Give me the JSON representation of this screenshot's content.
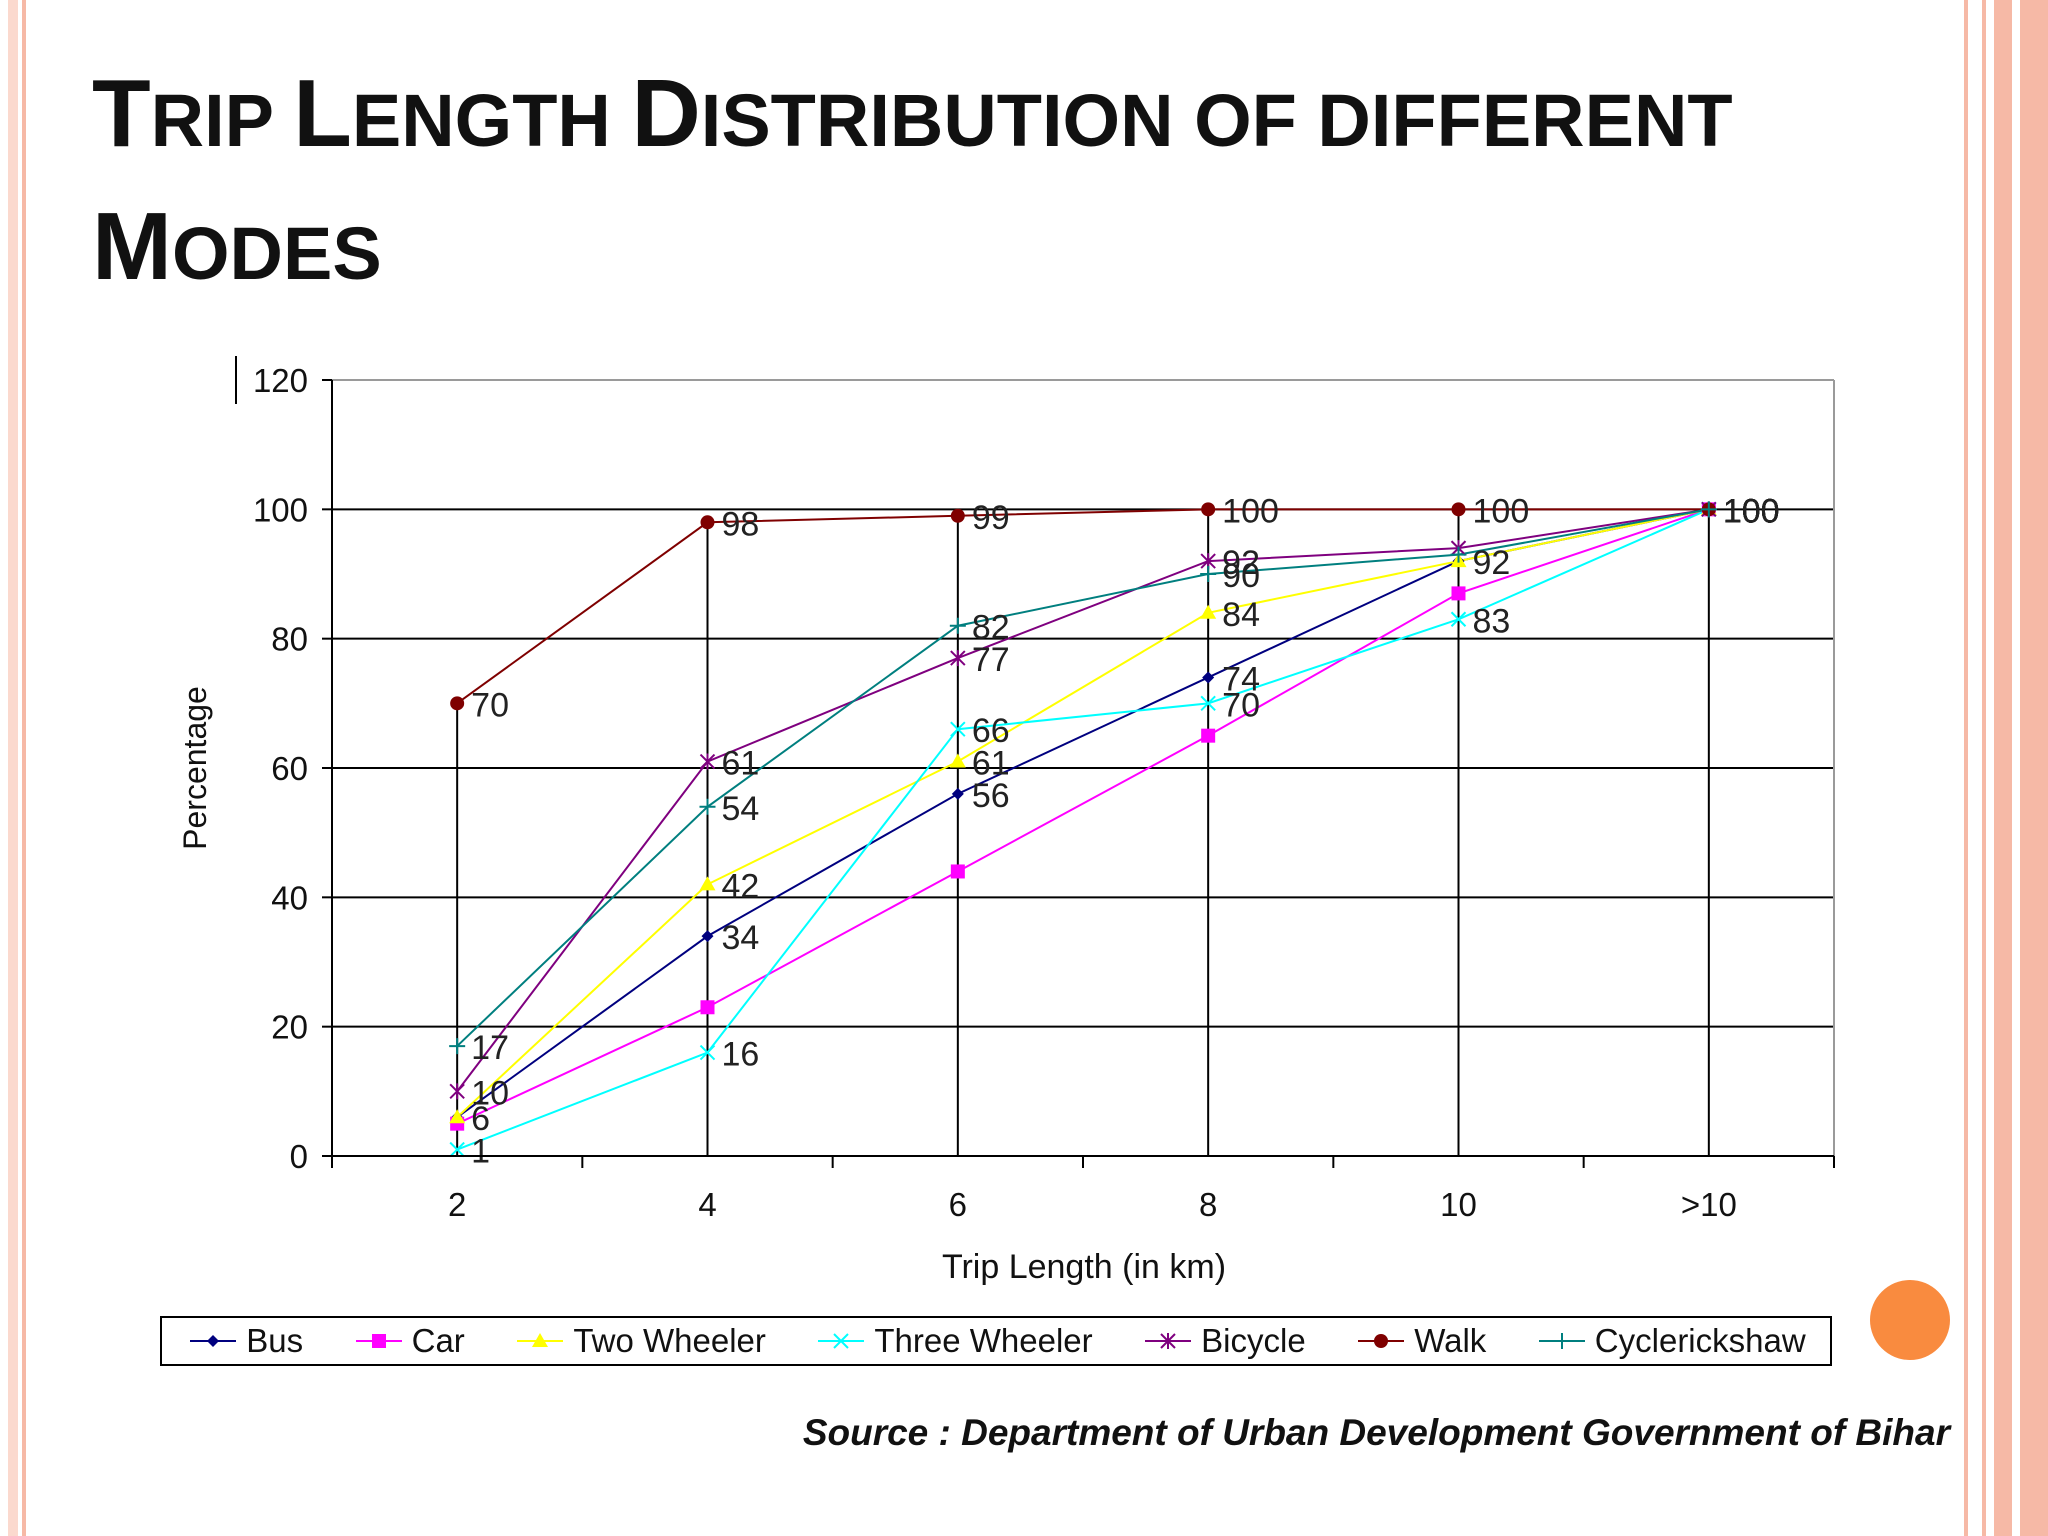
{
  "title": {
    "line1": [
      {
        "text": "T",
        "size": "big"
      },
      {
        "text": "RIP ",
        "size": "small"
      },
      {
        "text": "L",
        "size": "big"
      },
      {
        "text": "ENGTH ",
        "size": "small"
      },
      {
        "text": "D",
        "size": "big"
      },
      {
        "text": "ISTRIBUTION OF DIFFERENT",
        "size": "small"
      }
    ],
    "line2": [
      {
        "text": "M",
        "size": "big"
      },
      {
        "text": "ODES",
        "size": "small"
      }
    ]
  },
  "source": "Source : Department of Urban Development Government of Bihar",
  "chart_data": {
    "type": "line",
    "title": "Trip Length Distribution of different Modes",
    "xlabel": "Trip Length (in km)",
    "ylabel": "Percentage",
    "categories": [
      "2",
      "4",
      "6",
      "8",
      "10",
      ">10"
    ],
    "ylim": [
      0,
      120
    ],
    "yticks": [
      0,
      20,
      40,
      60,
      80,
      100,
      120
    ],
    "grid": true,
    "legend_position": "bottom",
    "series": [
      {
        "name": "Bus",
        "color": "#00007f",
        "marker": "diamond",
        "values": [
          6,
          34,
          56,
          74,
          92,
          100
        ],
        "labels": [
          null,
          "34",
          "56",
          "74",
          "92",
          "100"
        ]
      },
      {
        "name": "Car",
        "color": "#ff00ff",
        "marker": "square",
        "values": [
          5,
          23,
          44,
          65,
          87,
          100
        ],
        "labels": [
          null,
          null,
          null,
          null,
          null,
          "100"
        ]
      },
      {
        "name": "Two Wheeler",
        "color": "#ffff00",
        "marker": "triangle",
        "values": [
          6,
          42,
          61,
          84,
          92,
          100
        ],
        "labels": [
          "6",
          "42",
          "61",
          "84",
          null,
          "100"
        ]
      },
      {
        "name": "Three Wheeler",
        "color": "#00ffff",
        "marker": "x",
        "values": [
          1,
          16,
          66,
          70,
          83,
          100
        ],
        "labels": [
          "1",
          "16",
          "66",
          "70",
          "83",
          "100"
        ]
      },
      {
        "name": "Bicycle",
        "color": "#7f007f",
        "marker": "star",
        "values": [
          10,
          61,
          77,
          92,
          94,
          100
        ],
        "labels": [
          "10",
          "61",
          "77",
          "92",
          null,
          "100"
        ]
      },
      {
        "name": "Walk",
        "color": "#7f0000",
        "marker": "circle",
        "values": [
          70,
          98,
          99,
          100,
          100,
          100
        ],
        "labels": [
          "70",
          "98",
          "99",
          "100",
          "100",
          "100"
        ]
      },
      {
        "name": "Cyclerickshaw",
        "color": "#007f7f",
        "marker": "plus",
        "values": [
          17,
          54,
          82,
          90,
          93,
          100
        ],
        "labels": [
          "17",
          "54",
          "82",
          "90",
          null,
          "100"
        ]
      }
    ]
  }
}
